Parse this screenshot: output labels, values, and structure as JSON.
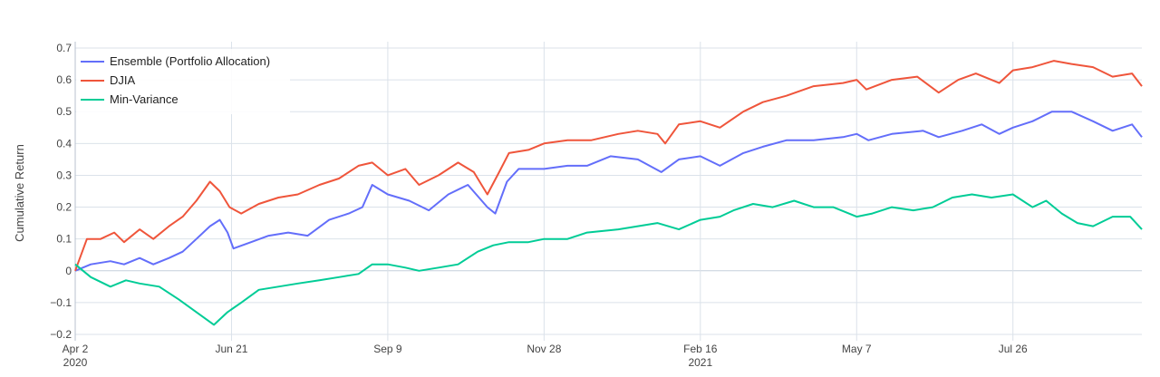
{
  "chart_data": {
    "type": "line",
    "ylabel": "Cumulative Return",
    "ylim": [
      -0.22,
      0.72
    ],
    "xlim": [
      "2020-04-02",
      "2021-09-30"
    ],
    "grid": true,
    "legend_position": "top-left",
    "yticks": [
      {
        "value": 0.7,
        "label": "0.7"
      },
      {
        "value": 0.6,
        "label": "0.6"
      },
      {
        "value": 0.5,
        "label": "0.5"
      },
      {
        "value": 0.4,
        "label": "0.4"
      },
      {
        "value": 0.3,
        "label": "0.3"
      },
      {
        "value": 0.2,
        "label": "0.2"
      },
      {
        "value": 0.1,
        "label": "0.1"
      },
      {
        "value": 0,
        "label": "0"
      },
      {
        "value": -0.1,
        "label": "−0.1"
      },
      {
        "value": -0.2,
        "label": "−0.2"
      }
    ],
    "xticks": [
      {
        "date": "2020-04-02",
        "label": "Apr 2",
        "sublabel": "2020"
      },
      {
        "date": "2020-06-21",
        "label": "Jun 21",
        "sublabel": ""
      },
      {
        "date": "2020-09-09",
        "label": "Sep 9",
        "sublabel": ""
      },
      {
        "date": "2020-11-28",
        "label": "Nov 28",
        "sublabel": ""
      },
      {
        "date": "2021-02-16",
        "label": "Feb 16",
        "sublabel": "2021"
      },
      {
        "date": "2021-05-07",
        "label": "May 7",
        "sublabel": ""
      },
      {
        "date": "2021-07-26",
        "label": "Jul 26",
        "sublabel": ""
      }
    ],
    "series": [
      {
        "name": "Ensemble (Portfolio Allocation)",
        "color": "#636efa",
        "points": [
          [
            "2020-04-02",
            0.0
          ],
          [
            "2020-04-10",
            0.02
          ],
          [
            "2020-04-20",
            0.03
          ],
          [
            "2020-04-27",
            0.02
          ],
          [
            "2020-05-05",
            0.04
          ],
          [
            "2020-05-12",
            0.02
          ],
          [
            "2020-05-20",
            0.04
          ],
          [
            "2020-05-27",
            0.06
          ],
          [
            "2020-06-03",
            0.1
          ],
          [
            "2020-06-10",
            0.14
          ],
          [
            "2020-06-15",
            0.16
          ],
          [
            "2020-06-19",
            0.12
          ],
          [
            "2020-06-22",
            0.07
          ],
          [
            "2020-07-01",
            0.09
          ],
          [
            "2020-07-10",
            0.11
          ],
          [
            "2020-07-20",
            0.12
          ],
          [
            "2020-07-30",
            0.11
          ],
          [
            "2020-08-10",
            0.16
          ],
          [
            "2020-08-20",
            0.18
          ],
          [
            "2020-08-27",
            0.2
          ],
          [
            "2020-09-01",
            0.27
          ],
          [
            "2020-09-09",
            0.24
          ],
          [
            "2020-09-20",
            0.22
          ],
          [
            "2020-09-30",
            0.19
          ],
          [
            "2020-10-10",
            0.24
          ],
          [
            "2020-10-20",
            0.27
          ],
          [
            "2020-10-30",
            0.2
          ],
          [
            "2020-11-03",
            0.18
          ],
          [
            "2020-11-09",
            0.28
          ],
          [
            "2020-11-15",
            0.32
          ],
          [
            "2020-11-28",
            0.32
          ],
          [
            "2020-12-10",
            0.33
          ],
          [
            "2020-12-20",
            0.33
          ],
          [
            "2021-01-01",
            0.36
          ],
          [
            "2021-01-15",
            0.35
          ],
          [
            "2021-01-27",
            0.31
          ],
          [
            "2021-02-05",
            0.35
          ],
          [
            "2021-02-16",
            0.36
          ],
          [
            "2021-02-26",
            0.33
          ],
          [
            "2021-03-10",
            0.37
          ],
          [
            "2021-03-20",
            0.39
          ],
          [
            "2021-04-01",
            0.41
          ],
          [
            "2021-04-15",
            0.41
          ],
          [
            "2021-04-30",
            0.42
          ],
          [
            "2021-05-07",
            0.43
          ],
          [
            "2021-05-13",
            0.41
          ],
          [
            "2021-05-25",
            0.43
          ],
          [
            "2021-06-10",
            0.44
          ],
          [
            "2021-06-18",
            0.42
          ],
          [
            "2021-06-30",
            0.44
          ],
          [
            "2021-07-10",
            0.46
          ],
          [
            "2021-07-19",
            0.43
          ],
          [
            "2021-07-26",
            0.45
          ],
          [
            "2021-08-05",
            0.47
          ],
          [
            "2021-08-15",
            0.5
          ],
          [
            "2021-08-25",
            0.5
          ],
          [
            "2021-09-05",
            0.47
          ],
          [
            "2021-09-15",
            0.44
          ],
          [
            "2021-09-25",
            0.46
          ],
          [
            "2021-09-30",
            0.42
          ]
        ]
      },
      {
        "name": "DJIA",
        "color": "#ef553b",
        "points": [
          [
            "2020-04-02",
            0.0
          ],
          [
            "2020-04-08",
            0.1
          ],
          [
            "2020-04-15",
            0.1
          ],
          [
            "2020-04-22",
            0.12
          ],
          [
            "2020-04-27",
            0.09
          ],
          [
            "2020-05-05",
            0.13
          ],
          [
            "2020-05-12",
            0.1
          ],
          [
            "2020-05-20",
            0.14
          ],
          [
            "2020-05-27",
            0.17
          ],
          [
            "2020-06-03",
            0.22
          ],
          [
            "2020-06-10",
            0.28
          ],
          [
            "2020-06-15",
            0.25
          ],
          [
            "2020-06-20",
            0.2
          ],
          [
            "2020-06-26",
            0.18
          ],
          [
            "2020-07-05",
            0.21
          ],
          [
            "2020-07-15",
            0.23
          ],
          [
            "2020-07-25",
            0.24
          ],
          [
            "2020-08-05",
            0.27
          ],
          [
            "2020-08-15",
            0.29
          ],
          [
            "2020-08-25",
            0.33
          ],
          [
            "2020-09-01",
            0.34
          ],
          [
            "2020-09-09",
            0.3
          ],
          [
            "2020-09-18",
            0.32
          ],
          [
            "2020-09-25",
            0.27
          ],
          [
            "2020-10-05",
            0.3
          ],
          [
            "2020-10-15",
            0.34
          ],
          [
            "2020-10-23",
            0.31
          ],
          [
            "2020-10-30",
            0.24
          ],
          [
            "2020-11-05",
            0.31
          ],
          [
            "2020-11-10",
            0.37
          ],
          [
            "2020-11-20",
            0.38
          ],
          [
            "2020-11-28",
            0.4
          ],
          [
            "2020-12-10",
            0.41
          ],
          [
            "2020-12-22",
            0.41
          ],
          [
            "2021-01-05",
            0.43
          ],
          [
            "2021-01-15",
            0.44
          ],
          [
            "2021-01-25",
            0.43
          ],
          [
            "2021-01-29",
            0.4
          ],
          [
            "2021-02-05",
            0.46
          ],
          [
            "2021-02-16",
            0.47
          ],
          [
            "2021-02-26",
            0.45
          ],
          [
            "2021-03-10",
            0.5
          ],
          [
            "2021-03-20",
            0.53
          ],
          [
            "2021-04-01",
            0.55
          ],
          [
            "2021-04-15",
            0.58
          ],
          [
            "2021-04-30",
            0.59
          ],
          [
            "2021-05-07",
            0.6
          ],
          [
            "2021-05-12",
            0.57
          ],
          [
            "2021-05-25",
            0.6
          ],
          [
            "2021-06-07",
            0.61
          ],
          [
            "2021-06-18",
            0.56
          ],
          [
            "2021-06-28",
            0.6
          ],
          [
            "2021-07-07",
            0.62
          ],
          [
            "2021-07-19",
            0.59
          ],
          [
            "2021-07-26",
            0.63
          ],
          [
            "2021-08-05",
            0.64
          ],
          [
            "2021-08-16",
            0.66
          ],
          [
            "2021-08-25",
            0.65
          ],
          [
            "2021-09-05",
            0.64
          ],
          [
            "2021-09-15",
            0.61
          ],
          [
            "2021-09-25",
            0.62
          ],
          [
            "2021-09-30",
            0.58
          ]
        ]
      },
      {
        "name": "Min-Variance",
        "color": "#00cc96",
        "points": [
          [
            "2020-04-02",
            0.02
          ],
          [
            "2020-04-10",
            -0.02
          ],
          [
            "2020-04-20",
            -0.05
          ],
          [
            "2020-04-28",
            -0.03
          ],
          [
            "2020-05-05",
            -0.04
          ],
          [
            "2020-05-15",
            -0.05
          ],
          [
            "2020-05-25",
            -0.09
          ],
          [
            "2020-06-03",
            -0.13
          ],
          [
            "2020-06-12",
            -0.17
          ],
          [
            "2020-06-19",
            -0.13
          ],
          [
            "2020-06-26",
            -0.1
          ],
          [
            "2020-07-05",
            -0.06
          ],
          [
            "2020-07-15",
            -0.05
          ],
          [
            "2020-07-25",
            -0.04
          ],
          [
            "2020-08-05",
            -0.03
          ],
          [
            "2020-08-15",
            -0.02
          ],
          [
            "2020-08-25",
            -0.01
          ],
          [
            "2020-09-01",
            0.02
          ],
          [
            "2020-09-09",
            0.02
          ],
          [
            "2020-09-18",
            0.01
          ],
          [
            "2020-09-25",
            0.0
          ],
          [
            "2020-10-05",
            0.01
          ],
          [
            "2020-10-15",
            0.02
          ],
          [
            "2020-10-25",
            0.06
          ],
          [
            "2020-11-02",
            0.08
          ],
          [
            "2020-11-10",
            0.09
          ],
          [
            "2020-11-20",
            0.09
          ],
          [
            "2020-11-28",
            0.1
          ],
          [
            "2020-12-10",
            0.1
          ],
          [
            "2020-12-20",
            0.12
          ],
          [
            "2021-01-05",
            0.13
          ],
          [
            "2021-01-15",
            0.14
          ],
          [
            "2021-01-25",
            0.15
          ],
          [
            "2021-02-05",
            0.13
          ],
          [
            "2021-02-16",
            0.16
          ],
          [
            "2021-02-26",
            0.17
          ],
          [
            "2021-03-05",
            0.19
          ],
          [
            "2021-03-15",
            0.21
          ],
          [
            "2021-03-25",
            0.2
          ],
          [
            "2021-04-05",
            0.22
          ],
          [
            "2021-04-15",
            0.2
          ],
          [
            "2021-04-25",
            0.2
          ],
          [
            "2021-05-07",
            0.17
          ],
          [
            "2021-05-15",
            0.18
          ],
          [
            "2021-05-25",
            0.2
          ],
          [
            "2021-06-05",
            0.19
          ],
          [
            "2021-06-15",
            0.2
          ],
          [
            "2021-06-25",
            0.23
          ],
          [
            "2021-07-05",
            0.24
          ],
          [
            "2021-07-15",
            0.23
          ],
          [
            "2021-07-26",
            0.24
          ],
          [
            "2021-08-05",
            0.2
          ],
          [
            "2021-08-12",
            0.22
          ],
          [
            "2021-08-20",
            0.18
          ],
          [
            "2021-08-28",
            0.15
          ],
          [
            "2021-09-05",
            0.14
          ],
          [
            "2021-09-15",
            0.17
          ],
          [
            "2021-09-24",
            0.17
          ],
          [
            "2021-09-30",
            0.13
          ]
        ]
      }
    ]
  }
}
